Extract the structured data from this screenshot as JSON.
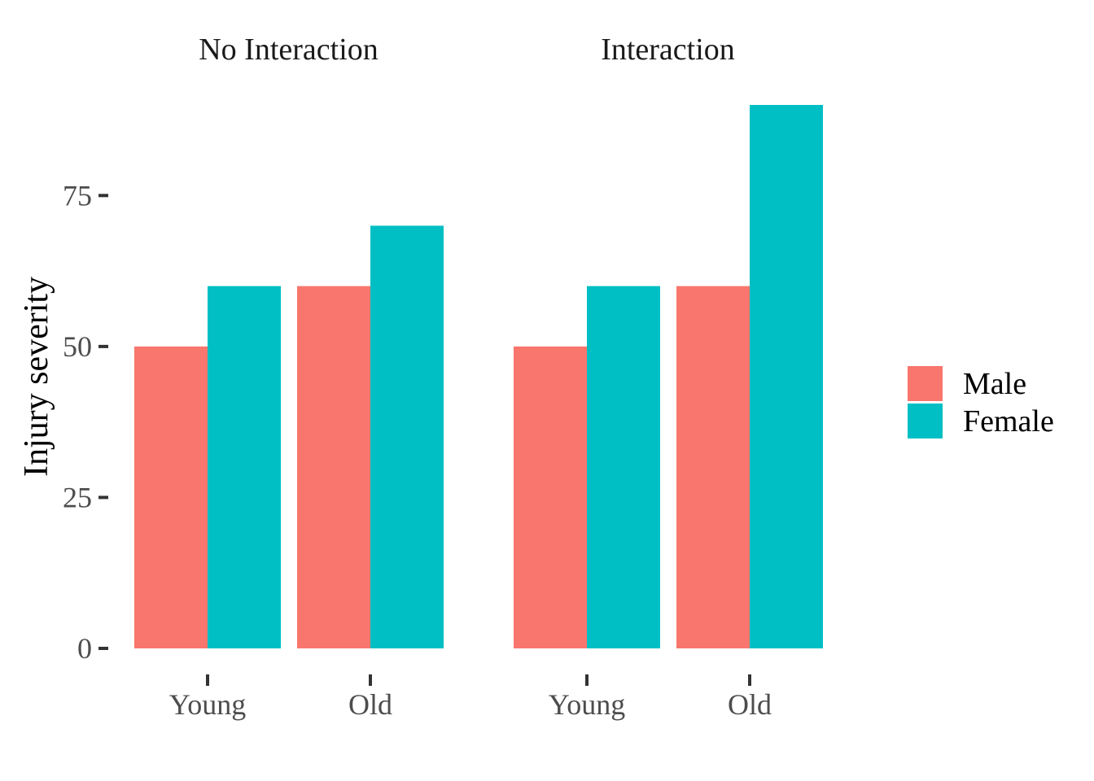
{
  "chart_data": {
    "type": "bar",
    "ylabel": "Injury severity",
    "xlabel": "",
    "ylim": [
      0,
      90
    ],
    "y_ticks": [
      0,
      25,
      50,
      75
    ],
    "grid": false,
    "legend_position": "right",
    "categories": [
      "Young",
      "Old"
    ],
    "series_meta": [
      {
        "name": "Male",
        "color": "#F8766D"
      },
      {
        "name": "Female",
        "color": "#00BFC4"
      }
    ],
    "facets": [
      {
        "title": "No Interaction",
        "series": [
          {
            "name": "Male",
            "values": [
              50,
              60
            ]
          },
          {
            "name": "Female",
            "values": [
              60,
              70
            ]
          }
        ]
      },
      {
        "title": "Interaction",
        "series": [
          {
            "name": "Male",
            "values": [
              50,
              60
            ]
          },
          {
            "name": "Female",
            "values": [
              60,
              90
            ]
          }
        ]
      }
    ]
  }
}
